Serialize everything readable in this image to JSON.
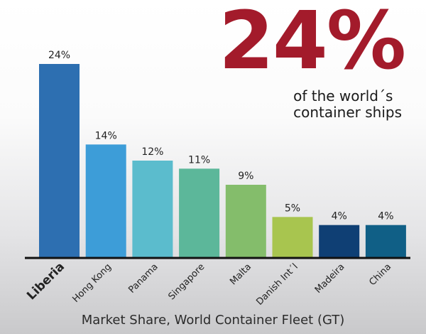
{
  "headline": {
    "value": "24%",
    "line1": "of the world´s",
    "line2": "container ships",
    "color": "#a31b2b"
  },
  "chart_data": {
    "type": "bar",
    "title": "",
    "xlabel": "Market Share, World Container Fleet (GT)",
    "ylabel": "",
    "ylim": [
      0,
      24
    ],
    "grid": false,
    "categories": [
      "Liberia",
      "Hong Kong",
      "Panama",
      "Singapore",
      "Malta",
      "Danish Int´l",
      "Madeira",
      "China"
    ],
    "values": [
      24,
      14,
      12,
      11,
      9,
      5,
      4,
      4
    ],
    "data_labels": [
      "24%",
      "14%",
      "12%",
      "11%",
      "9%",
      "5%",
      "4%",
      "4%"
    ],
    "colors": [
      "#2d6fb1",
      "#3d9dd8",
      "#5bbccd",
      "#5cb79a",
      "#84bd6b",
      "#a8c54f",
      "#0f3f74",
      "#105f86"
    ]
  }
}
